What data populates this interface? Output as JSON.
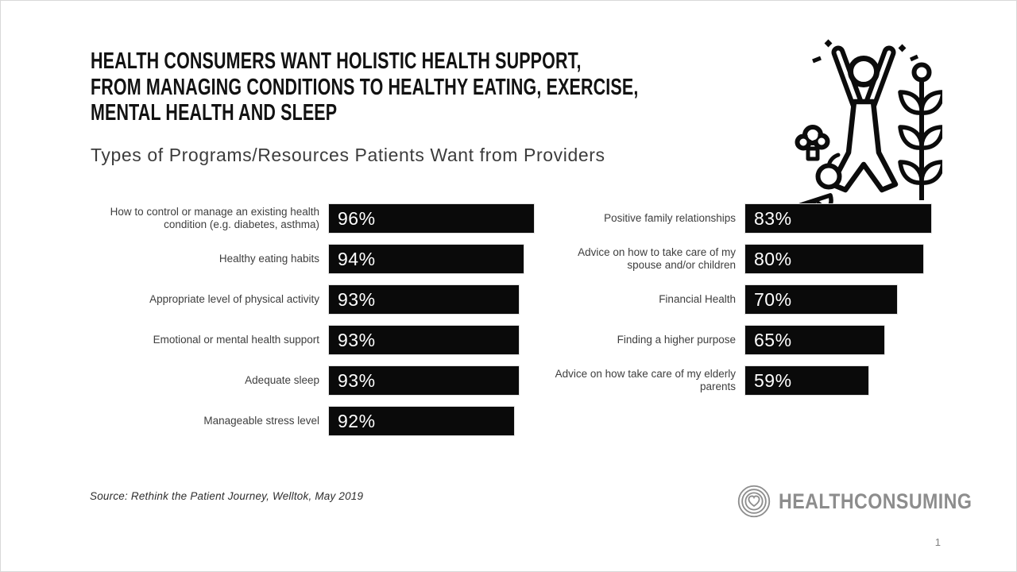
{
  "header": {
    "title": "HEALTH CONSUMERS WANT HOLISTIC HEALTH SUPPORT,\nFROM MANAGING CONDITIONS TO HEALTHY EATING, EXERCISE,\nMENTAL HEALTH AND SLEEP",
    "subtitle": "Types of Programs/Resources Patients Want from Providers"
  },
  "chart_data": {
    "type": "bar",
    "orientation": "horizontal",
    "title": "Types of Programs/Resources Patients Want from Providers",
    "value_suffix": "%",
    "bar_color": "#0a0a0a",
    "value_label_color": "#ffffff",
    "value_labels_inside_bars": true,
    "grid": false,
    "legend": "none",
    "columns": [
      {
        "side": "left",
        "axis_min": 55,
        "axis_max": 100,
        "items": [
          {
            "label": "How to control or manage an existing health condition (e.g. diabetes, asthma)",
            "value": 96
          },
          {
            "label": "Healthy eating habits",
            "value": 94
          },
          {
            "label": "Appropriate level of physical activity",
            "value": 93
          },
          {
            "label": "Emotional or mental health support",
            "value": 93
          },
          {
            "label": "Adequate sleep",
            "value": 93
          },
          {
            "label": "Manageable stress level",
            "value": 92
          }
        ]
      },
      {
        "side": "right",
        "axis_min": 12,
        "axis_max": 100,
        "items": [
          {
            "label": "Positive family relationships",
            "value": 83
          },
          {
            "label": "Advice on how  to take care of my spouse and/or children",
            "value": 80
          },
          {
            "label": "Financial Health",
            "value": 70
          },
          {
            "label": "Finding a higher purpose",
            "value": 65
          },
          {
            "label": "Advice on how take care of my elderly parents",
            "value": 59
          }
        ]
      }
    ]
  },
  "icons": {
    "hero": "healthy-lifestyle-icon (person with raised arms, broccoli, apple, citrus slice, wheat branch, sparkles)",
    "brand": "heart-rings-icon"
  },
  "footer": {
    "source": "Source: Rethink the Patient Journey, Welltok, May 2019",
    "brand": "HEALTHCONSUMING",
    "page_number": "1"
  },
  "colors": {
    "bar": "#0a0a0a",
    "title_text": "#121212",
    "body_text": "#3e3e3e",
    "brand_gray": "#8d8d8d"
  }
}
